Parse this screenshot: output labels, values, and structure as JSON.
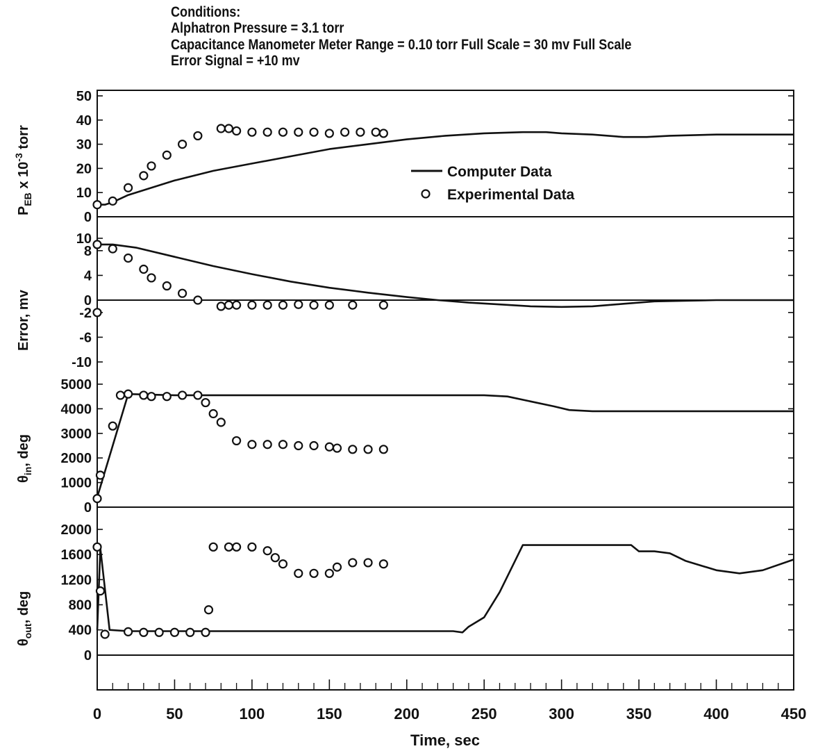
{
  "conditions": {
    "heading": "Conditions:",
    "lines": [
      "Alphatron Pressure = 3.1 torr",
      "Capacitance Manometer Meter Range = 0.10 torr Full Scale = 30 mv Full Scale",
      "Error Signal = +10 mv"
    ]
  },
  "legend": {
    "computer": "Computer Data",
    "experimental": "Experimental Data"
  },
  "colors": {
    "ink": "#111111",
    "background": "#ffffff"
  },
  "chart_data": {
    "type": "line",
    "xlabel": "Time, sec",
    "xlim": [
      0,
      450
    ],
    "xticks": [
      0,
      50,
      100,
      150,
      200,
      250,
      300,
      350,
      400,
      450
    ],
    "grid": false,
    "legend_position": "center, top panel",
    "panels": [
      {
        "id": "peb",
        "ylabel": "P_EB x 10^-3 torr",
        "ylim": [
          0,
          50
        ],
        "yticks": [
          0,
          10,
          20,
          30,
          40,
          50
        ],
        "series": [
          {
            "name": "Computer Data",
            "kind": "line",
            "x": [
              0,
              5,
              10,
              20,
              30,
              50,
              75,
              100,
              125,
              150,
              175,
              200,
              225,
              250,
              275,
              290,
              300,
              320,
              340,
              355,
              370,
              400,
              450
            ],
            "y": [
              5,
              5,
              6,
              9,
              11,
              15,
              19,
              22,
              25,
              28,
              30,
              32,
              33.5,
              34.5,
              35,
              35,
              34.5,
              34,
              33,
              33,
              33.5,
              34,
              34
            ]
          },
          {
            "name": "Experimental Data",
            "kind": "scatter",
            "x": [
              0,
              10,
              20,
              30,
              35,
              45,
              55,
              65,
              80,
              85,
              90,
              100,
              110,
              120,
              130,
              140,
              150,
              160,
              170,
              180,
              185
            ],
            "y": [
              5,
              6.5,
              12,
              17,
              21,
              25.5,
              30,
              33.5,
              36.5,
              36.5,
              35.5,
              35,
              35,
              35,
              35,
              35,
              34.5,
              35,
              35,
              35,
              34.5
            ]
          }
        ]
      },
      {
        "id": "error",
        "ylabel": "Error, mv",
        "ylim": [
          -10,
          10
        ],
        "yticks": [
          10,
          8,
          4,
          0,
          -2,
          -6,
          -10
        ],
        "series": [
          {
            "name": "Computer Data",
            "kind": "line",
            "x": [
              0,
              10,
              25,
              50,
              75,
              100,
              125,
              150,
              175,
              200,
              220,
              240,
              260,
              280,
              300,
              320,
              340,
              360,
              400,
              450
            ],
            "y": [
              9,
              9,
              8.5,
              7,
              5.5,
              4.2,
              3,
              2,
              1.2,
              0.5,
              0,
              -0.4,
              -0.7,
              -1,
              -1.1,
              -1,
              -0.6,
              -0.2,
              0,
              0
            ]
          },
          {
            "name": "Experimental Data",
            "kind": "scatter",
            "x": [
              0,
              0,
              10,
              20,
              30,
              35,
              45,
              55,
              65,
              80,
              85,
              90,
              100,
              110,
              120,
              130,
              140,
              150,
              165,
              185
            ],
            "y": [
              9,
              -2,
              8.3,
              6.8,
              5,
              3.6,
              2.3,
              1.1,
              0,
              -1,
              -0.8,
              -0.8,
              -0.8,
              -0.8,
              -0.8,
              -0.7,
              -0.8,
              -0.8,
              -0.8,
              -0.8
            ]
          }
        ]
      },
      {
        "id": "theta-in",
        "ylabel": "θ_in, deg",
        "ylim": [
          0,
          5000
        ],
        "yticks": [
          0,
          1000,
          2000,
          3000,
          4000,
          5000
        ],
        "series": [
          {
            "name": "Computer Data",
            "kind": "line",
            "x": [
              0,
              10,
              20,
              50,
              100,
              150,
              200,
              250,
              265,
              280,
              295,
              305,
              320,
              350,
              400,
              450
            ],
            "y": [
              400,
              2500,
              4600,
              4550,
              4550,
              4550,
              4550,
              4550,
              4500,
              4300,
              4100,
              3950,
              3900,
              3900,
              3900,
              3900
            ]
          },
          {
            "name": "Experimental Data",
            "kind": "scatter",
            "x": [
              0,
              2,
              10,
              15,
              20,
              30,
              35,
              45,
              55,
              65,
              70,
              75,
              80,
              90,
              100,
              110,
              120,
              130,
              140,
              150,
              155,
              165,
              175,
              185
            ],
            "y": [
              350,
              1300,
              3300,
              4550,
              4600,
              4550,
              4500,
              4500,
              4550,
              4550,
              4250,
              3800,
              3450,
              2700,
              2550,
              2550,
              2550,
              2500,
              2500,
              2450,
              2400,
              2350,
              2350,
              2350
            ]
          }
        ]
      },
      {
        "id": "theta-out",
        "ylabel": "θ_out, deg",
        "ylim": [
          -400,
          2000
        ],
        "yticks": [
          0,
          400,
          800,
          1200,
          1600,
          2000
        ],
        "series": [
          {
            "name": "Computer Data",
            "kind": "line",
            "x": [
              0,
              2,
              8,
              20,
              50,
              100,
              150,
              200,
              230,
              236,
              240,
              250,
              260,
              270,
              275,
              300,
              330,
              345,
              350,
              360,
              370,
              380,
              400,
              415,
              430,
              450
            ],
            "y": [
              400,
              1700,
              400,
              380,
              380,
              380,
              380,
              380,
              380,
              360,
              450,
              600,
              1000,
              1500,
              1750,
              1750,
              1750,
              1750,
              1650,
              1650,
              1620,
              1500,
              1350,
              1300,
              1350,
              1520
            ]
          },
          {
            "name": "Experimental Data",
            "kind": "scatter",
            "x": [
              0,
              2,
              5,
              20,
              30,
              40,
              50,
              60,
              70,
              72,
              75,
              85,
              90,
              100,
              110,
              115,
              120,
              130,
              140,
              150,
              155,
              165,
              175,
              185
            ],
            "y": [
              1720,
              1020,
              330,
              370,
              360,
              360,
              360,
              360,
              360,
              720,
              1720,
              1720,
              1720,
              1720,
              1660,
              1550,
              1450,
              1300,
              1300,
              1300,
              1400,
              1470,
              1470,
              1450
            ]
          }
        ]
      }
    ]
  }
}
